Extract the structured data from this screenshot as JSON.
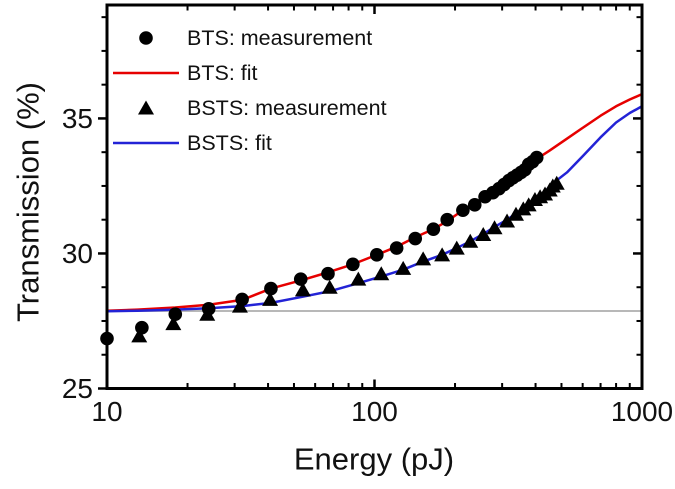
{
  "figure": {
    "background": "#ffffff",
    "frame_color": "#000000"
  },
  "chart_data": {
    "type": "scatter",
    "title": "",
    "xlabel": "Energy (pJ)",
    "ylabel": "Transmission (%)",
    "xscale": "log",
    "xlim": [
      10,
      1000
    ],
    "ylim": [
      25,
      39.2
    ],
    "grid": false,
    "legend_position": "top-left-inside",
    "x_axis": {
      "major_ticks": [
        10,
        100,
        1000
      ],
      "major_tick_labels": [
        "10",
        "100",
        "1000"
      ],
      "minor_ticks": [
        20,
        30,
        40,
        50,
        60,
        70,
        80,
        90,
        200,
        300,
        400,
        500,
        600,
        700,
        800,
        900
      ]
    },
    "y_axis": {
      "major_ticks": [
        25,
        30,
        35
      ],
      "major_tick_labels": [
        "25",
        "30",
        "35"
      ],
      "minor_ticks": [
        26.25,
        27.5,
        28.75,
        31.25,
        32.5,
        33.75,
        36.25,
        37.5,
        38.75
      ]
    },
    "baseline": {
      "value": 27.87,
      "color": "#b8b8b8"
    },
    "series": [
      {
        "name": "BTS: measurement",
        "type": "scatter",
        "marker": "circle",
        "color": "#000000",
        "points": [
          [
            10,
            26.85
          ],
          [
            13.5,
            27.25
          ],
          [
            18,
            27.75
          ],
          [
            24,
            27.95
          ],
          [
            32,
            28.3
          ],
          [
            41,
            28.7
          ],
          [
            53,
            29.05
          ],
          [
            67,
            29.25
          ],
          [
            83,
            29.6
          ],
          [
            102,
            29.95
          ],
          [
            121,
            30.2
          ],
          [
            142,
            30.55
          ],
          [
            166,
            30.9
          ],
          [
            187,
            31.25
          ],
          [
            214,
            31.6
          ],
          [
            237,
            31.8
          ],
          [
            259,
            32.1
          ],
          [
            277,
            32.25
          ],
          [
            292,
            32.4
          ],
          [
            305,
            32.55
          ],
          [
            318,
            32.7
          ],
          [
            329,
            32.8
          ],
          [
            341,
            32.9
          ],
          [
            353,
            33.0
          ],
          [
            365,
            33.1
          ],
          [
            377,
            33.3
          ],
          [
            390,
            33.4
          ],
          [
            404,
            33.55
          ]
        ]
      },
      {
        "name": "BTS: fit",
        "type": "line",
        "color": "#e60000",
        "points": [
          [
            10,
            27.88
          ],
          [
            13,
            27.92
          ],
          [
            18,
            28.0
          ],
          [
            24,
            28.1
          ],
          [
            32,
            28.28
          ],
          [
            41,
            28.7
          ],
          [
            53,
            29.0
          ],
          [
            67,
            29.3
          ],
          [
            83,
            29.6
          ],
          [
            102,
            29.95
          ],
          [
            121,
            30.25
          ],
          [
            142,
            30.6
          ],
          [
            166,
            30.9
          ],
          [
            187,
            31.2
          ],
          [
            214,
            31.6
          ],
          [
            237,
            31.85
          ],
          [
            259,
            32.1
          ],
          [
            292,
            32.45
          ],
          [
            318,
            32.7
          ],
          [
            353,
            33.05
          ],
          [
            390,
            33.4
          ],
          [
            404,
            33.5
          ],
          [
            450,
            33.8
          ],
          [
            524,
            34.25
          ],
          [
            600,
            34.65
          ],
          [
            700,
            35.1
          ],
          [
            800,
            35.45
          ],
          [
            900,
            35.7
          ],
          [
            1000,
            35.9
          ]
        ]
      },
      {
        "name": "BSTS: measurement",
        "type": "scatter",
        "marker": "triangle",
        "color": "#000000",
        "points": [
          [
            13.2,
            26.95
          ],
          [
            17.7,
            27.4
          ],
          [
            23.7,
            27.75
          ],
          [
            31.4,
            28.05
          ],
          [
            40.7,
            28.3
          ],
          [
            54,
            28.65
          ],
          [
            68,
            28.75
          ],
          [
            87,
            29.05
          ],
          [
            106,
            29.25
          ],
          [
            128,
            29.45
          ],
          [
            152,
            29.8
          ],
          [
            179,
            29.95
          ],
          [
            203,
            30.2
          ],
          [
            228,
            30.45
          ],
          [
            255,
            30.7
          ],
          [
            281,
            30.95
          ],
          [
            313,
            31.2
          ],
          [
            338,
            31.45
          ],
          [
            360,
            31.65
          ],
          [
            377,
            31.8
          ],
          [
            398,
            32.0
          ],
          [
            416,
            32.1
          ],
          [
            434,
            32.2
          ],
          [
            452,
            32.35
          ],
          [
            464,
            32.5
          ],
          [
            480,
            32.6
          ]
        ]
      },
      {
        "name": "BSTS: fit",
        "type": "line",
        "color": "#2323d6",
        "points": [
          [
            10,
            27.86
          ],
          [
            13,
            27.88
          ],
          [
            18,
            27.92
          ],
          [
            24,
            27.97
          ],
          [
            32,
            28.05
          ],
          [
            41,
            28.17
          ],
          [
            54,
            28.4
          ],
          [
            68,
            28.6
          ],
          [
            87,
            28.9
          ],
          [
            106,
            29.15
          ],
          [
            128,
            29.4
          ],
          [
            152,
            29.7
          ],
          [
            179,
            29.95
          ],
          [
            203,
            30.2
          ],
          [
            228,
            30.45
          ],
          [
            255,
            30.72
          ],
          [
            281,
            30.98
          ],
          [
            313,
            31.25
          ],
          [
            338,
            31.48
          ],
          [
            360,
            31.68
          ],
          [
            398,
            32.0
          ],
          [
            434,
            32.3
          ],
          [
            465,
            32.6
          ],
          [
            524,
            33.0
          ],
          [
            600,
            33.6
          ],
          [
            700,
            34.3
          ],
          [
            800,
            34.85
          ],
          [
            900,
            35.2
          ],
          [
            1000,
            35.45
          ]
        ]
      }
    ],
    "legend": {
      "items": [
        {
          "glyph": "circle-marker",
          "series_index": 0
        },
        {
          "glyph": "line-swatch",
          "series_index": 1
        },
        {
          "glyph": "triangle-marker",
          "series_index": 2
        },
        {
          "glyph": "line-swatch",
          "series_index": 3
        }
      ]
    }
  }
}
